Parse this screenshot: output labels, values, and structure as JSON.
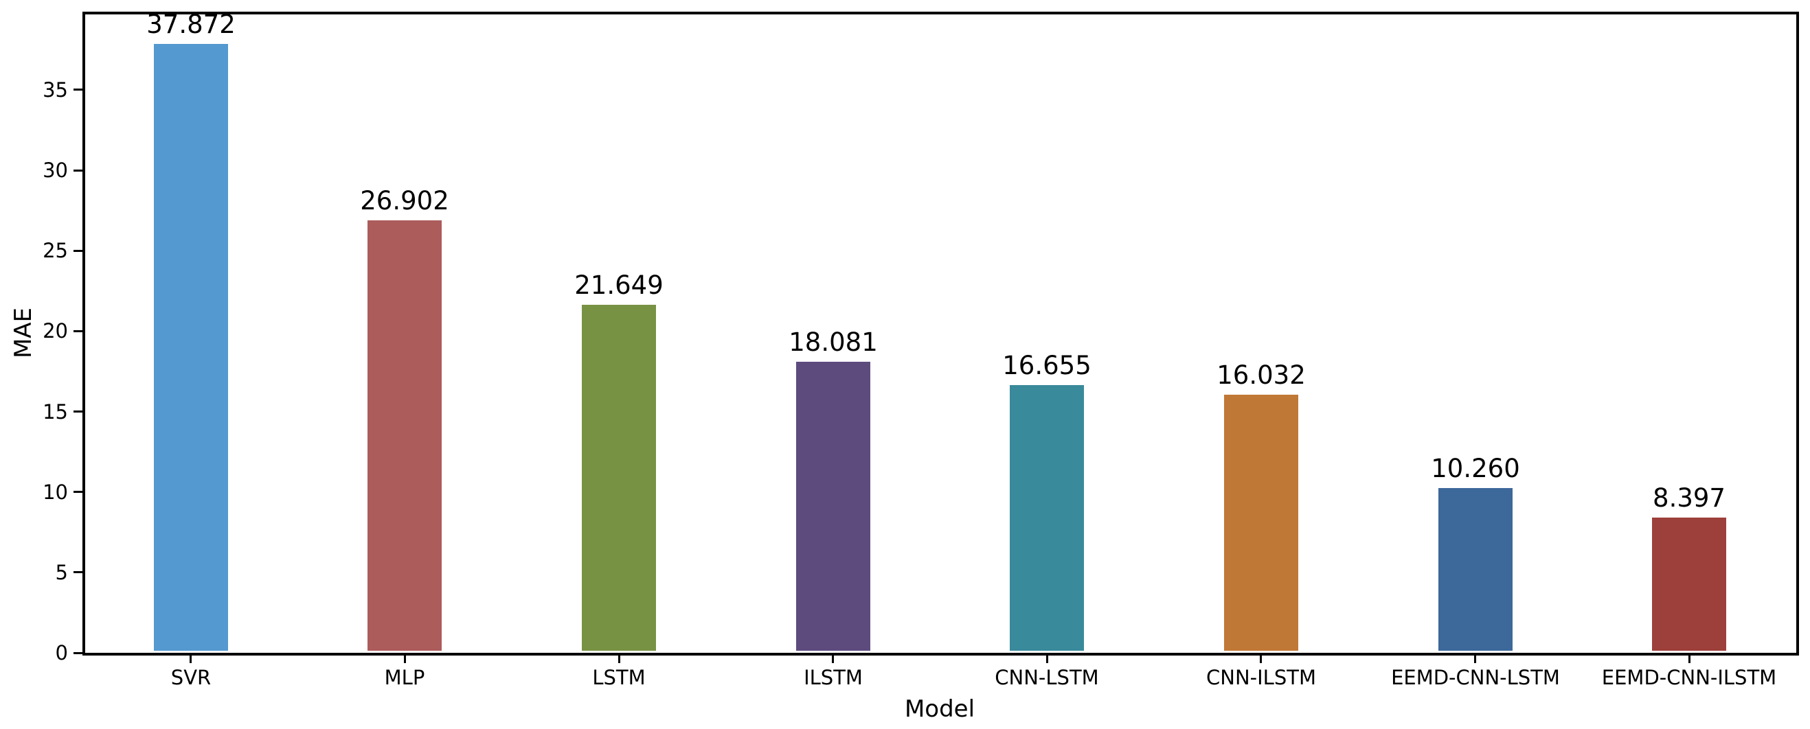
{
  "figure": {
    "background_color": "#ffffff",
    "spine_color": "#000000",
    "text_color": "#000000"
  },
  "chart_data": {
    "type": "bar",
    "title": "",
    "xlabel": "Model",
    "ylabel": "MAE",
    "categories": [
      "SVR",
      "MLP",
      "LSTM",
      "ILSTM",
      "CNN-LSTM",
      "CNN-ILSTM",
      "EEMD-CNN-LSTM",
      "EEMD-CNN-ILSTM"
    ],
    "values": [
      37.872,
      26.902,
      21.649,
      18.081,
      16.655,
      16.032,
      10.26,
      8.397
    ],
    "value_labels": [
      "37.872",
      "26.902",
      "21.649",
      "18.081",
      "16.655",
      "16.032",
      "10.260",
      "8.397"
    ],
    "bar_colors": [
      "#5499cf",
      "#ad5c5c",
      "#789243",
      "#5e4b7e",
      "#398a9b",
      "#c07836",
      "#3d689a",
      "#9d3f3b"
    ],
    "yticks": [
      0,
      5,
      10,
      15,
      20,
      25,
      30,
      35
    ],
    "ylim": [
      0,
      39.78
    ],
    "grid": false,
    "legend_position": "none"
  }
}
